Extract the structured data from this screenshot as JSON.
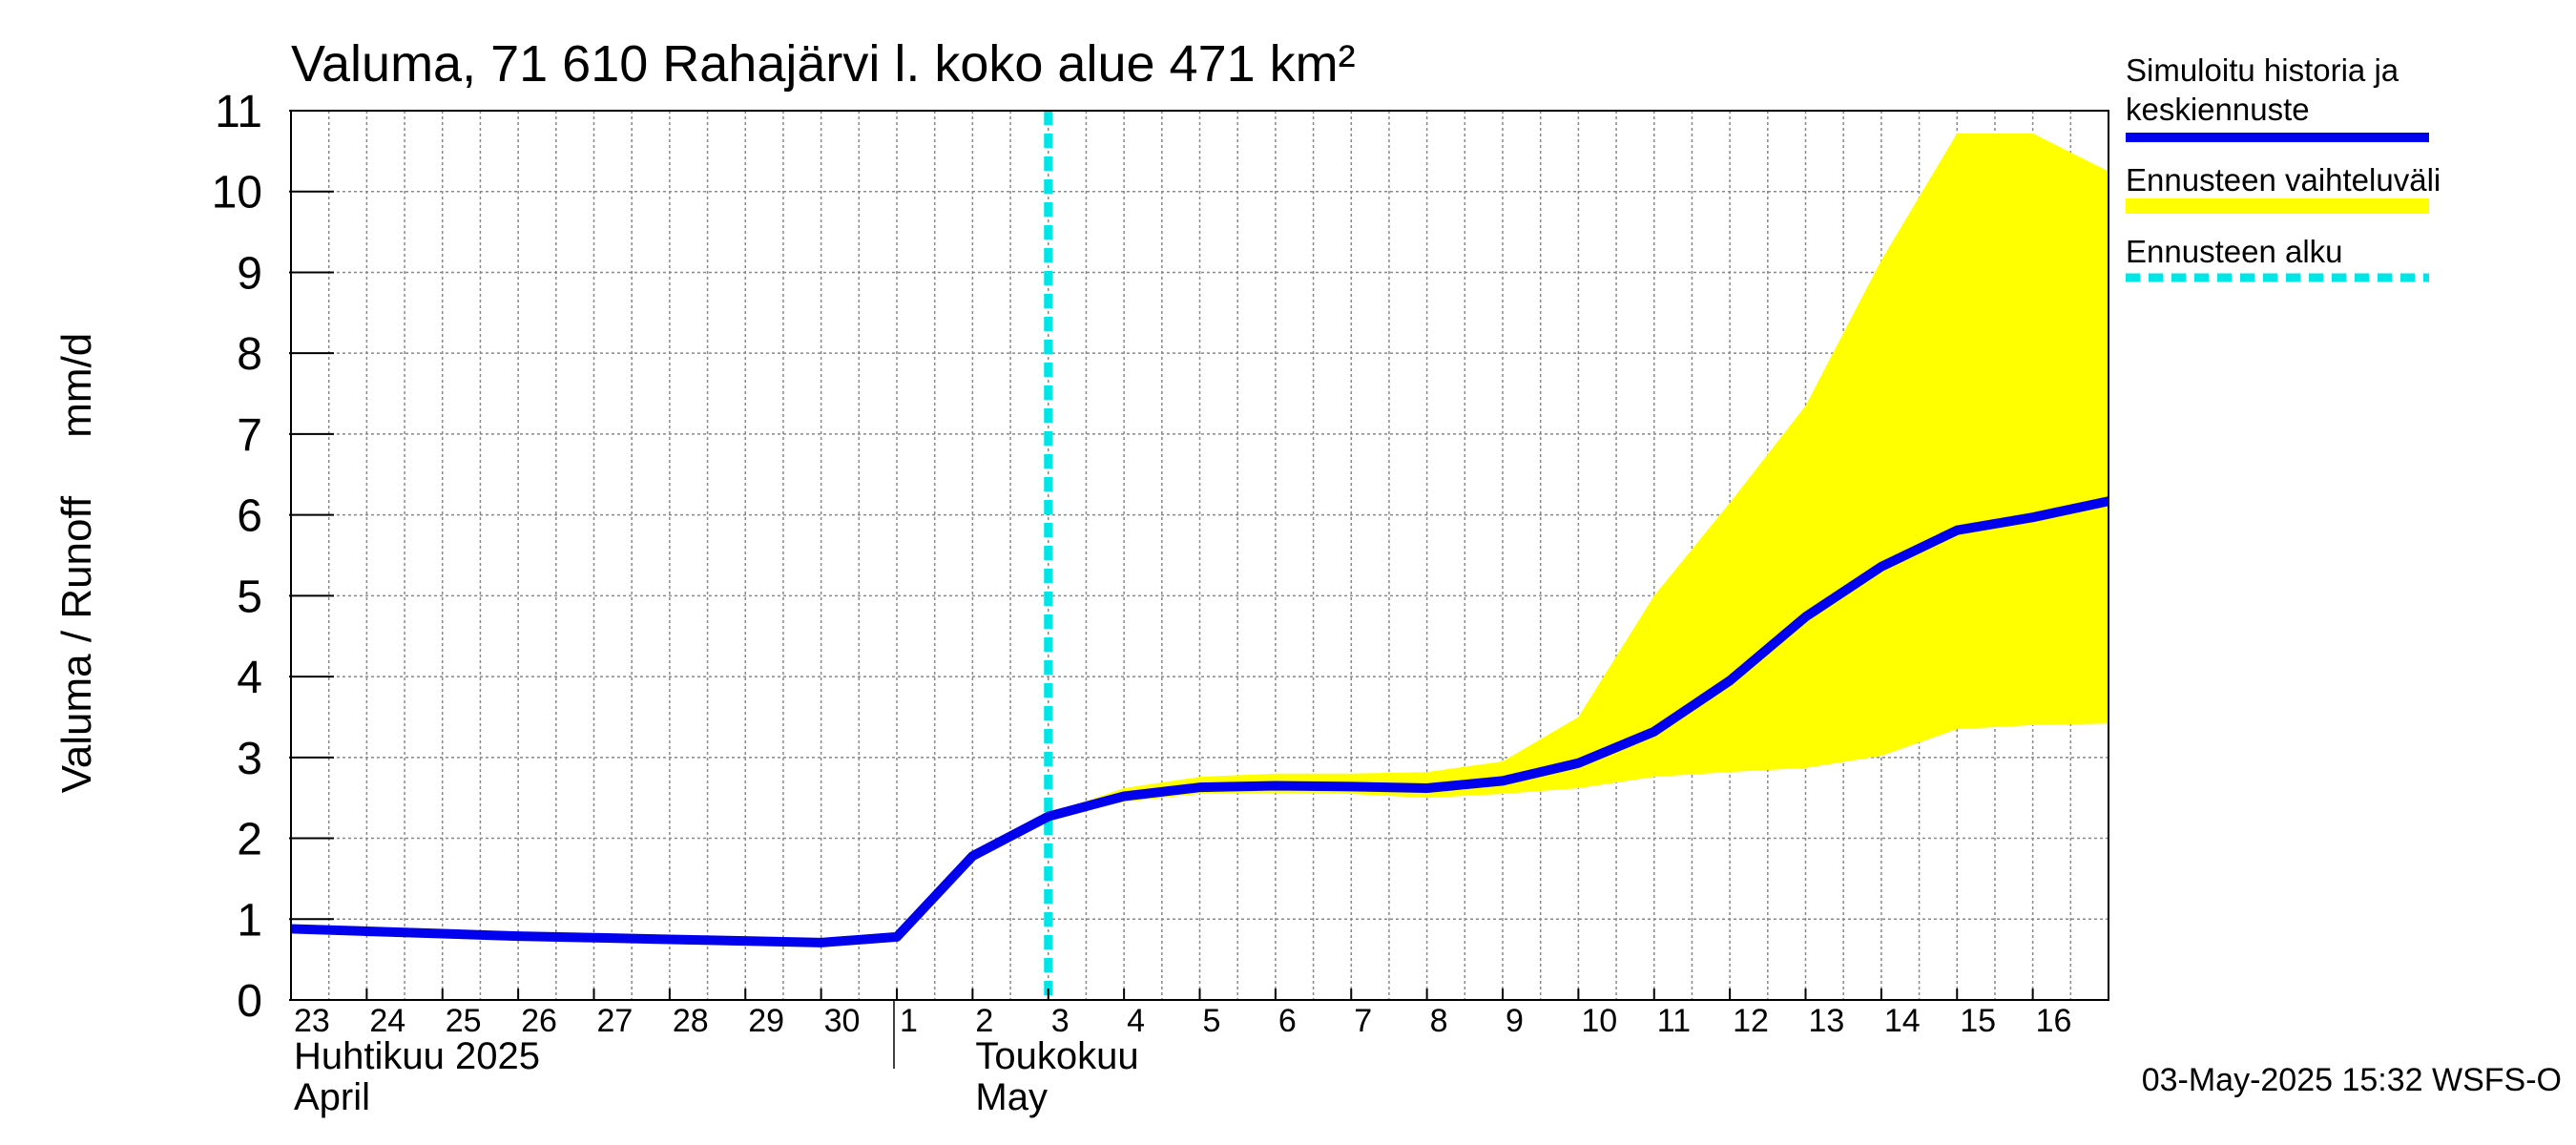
{
  "chart_data": {
    "type": "line",
    "title": "Valuma, 71 610 Rahajärvi l. koko alue 471 km²",
    "ylabel": "Valuma / Runoff     mm/d",
    "ylim": [
      0,
      11
    ],
    "yticks": [
      "0",
      "1",
      "2",
      "3",
      "4",
      "5",
      "6",
      "7",
      "8",
      "9",
      "10",
      "11"
    ],
    "x_start": 0,
    "x_end": 24,
    "x_ticks": [
      {
        "x": 0,
        "label": "23"
      },
      {
        "x": 1,
        "label": "24"
      },
      {
        "x": 2,
        "label": "25"
      },
      {
        "x": 3,
        "label": "26"
      },
      {
        "x": 4,
        "label": "27"
      },
      {
        "x": 5,
        "label": "28"
      },
      {
        "x": 6,
        "label": "29"
      },
      {
        "x": 7,
        "label": "30"
      },
      {
        "x": 8,
        "label": "1"
      },
      {
        "x": 9,
        "label": "2"
      },
      {
        "x": 10,
        "label": "3"
      },
      {
        "x": 11,
        "label": "4"
      },
      {
        "x": 12,
        "label": "5"
      },
      {
        "x": 13,
        "label": "6"
      },
      {
        "x": 14,
        "label": "7"
      },
      {
        "x": 15,
        "label": "8"
      },
      {
        "x": 16,
        "label": "9"
      },
      {
        "x": 17,
        "label": "10"
      },
      {
        "x": 18,
        "label": "11"
      },
      {
        "x": 19,
        "label": "12"
      },
      {
        "x": 20,
        "label": "13"
      },
      {
        "x": 21,
        "label": "14"
      },
      {
        "x": 22,
        "label": "15"
      },
      {
        "x": 23,
        "label": "16"
      }
    ],
    "month_labels": [
      {
        "x": 0,
        "line1": "Huhtikuu  2025",
        "line2": "April"
      },
      {
        "x": 9,
        "line1": "Toukokuu",
        "line2": "May"
      }
    ],
    "month_divider_x": 8,
    "forecast_start_x": 10,
    "series": [
      {
        "name": "Simuloitu historia ja keskiennuste",
        "color": "#0000ee",
        "x": [
          0,
          1,
          2,
          3,
          4,
          5,
          6,
          7,
          8,
          9,
          10,
          11,
          12,
          13,
          14,
          15,
          16,
          17,
          18,
          19,
          20,
          21,
          22,
          23,
          24
        ],
        "values": [
          0.88,
          0.85,
          0.82,
          0.79,
          0.77,
          0.75,
          0.73,
          0.71,
          0.78,
          1.78,
          2.27,
          2.52,
          2.63,
          2.65,
          2.64,
          2.62,
          2.71,
          2.93,
          3.32,
          3.95,
          4.74,
          5.36,
          5.81,
          5.97,
          6.17
        ]
      }
    ],
    "band": {
      "name": "Ennusteen vaihteluväli",
      "color": "#ffff00",
      "x": [
        10,
        11,
        12,
        13,
        14,
        15,
        16,
        17,
        18,
        19,
        20,
        21,
        22,
        23,
        24
      ],
      "upper": [
        2.3,
        2.62,
        2.76,
        2.8,
        2.8,
        2.82,
        2.95,
        3.5,
        5.0,
        6.15,
        7.35,
        9.15,
        10.72,
        10.72,
        10.25
      ],
      "lower": [
        2.25,
        2.45,
        2.55,
        2.56,
        2.55,
        2.5,
        2.55,
        2.62,
        2.76,
        2.82,
        2.87,
        3.02,
        3.35,
        3.4,
        3.42
      ]
    },
    "legend": [
      {
        "line1": "Simuloitu historia ja",
        "line2": "keskiennuste",
        "color": "#0000ee",
        "style": "solid"
      },
      {
        "line1": "Ennusteen vaihteluväli",
        "line2": "",
        "color": "#ffff00",
        "style": "band"
      },
      {
        "line1": "Ennusteen alku",
        "line2": "",
        "color": "#00e5e5",
        "style": "dashed"
      }
    ],
    "footer": "03-May-2025 15:32 WSFS-O"
  }
}
